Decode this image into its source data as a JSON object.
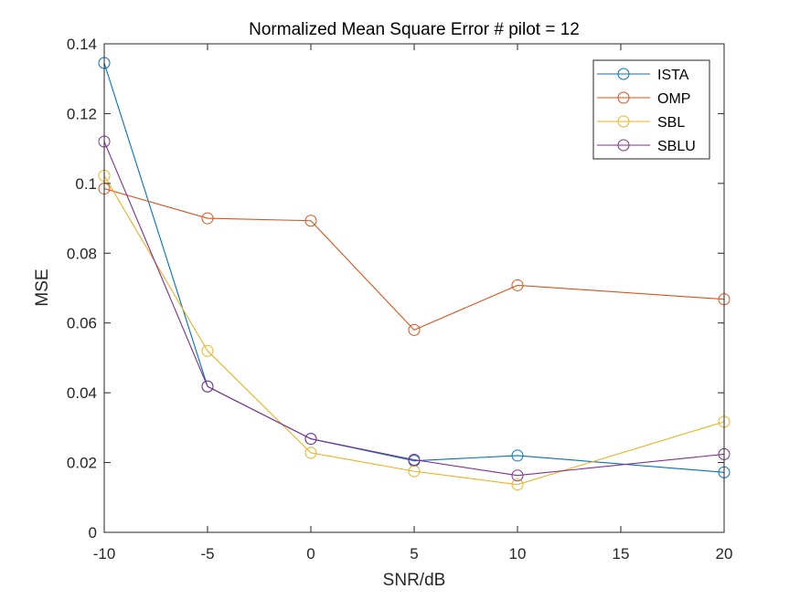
{
  "chart_data": {
    "type": "line",
    "title": "Normalized Mean Square Error # pilot = 12",
    "xlabel": "SNR/dB",
    "ylabel": "MSE",
    "x": [
      -10,
      -5,
      0,
      5,
      10,
      20
    ],
    "xlim": [
      -10,
      20
    ],
    "ylim": [
      0,
      0.14
    ],
    "xticks": [
      -10,
      -5,
      0,
      5,
      10,
      15,
      20
    ],
    "xtick_labels": [
      "-10",
      "-5",
      "0",
      "5",
      "10",
      "15",
      "20"
    ],
    "yticks": [
      0,
      0.02,
      0.04,
      0.06,
      0.08,
      0.1,
      0.12,
      0.14
    ],
    "ytick_labels": [
      "0",
      "0.02",
      "0.04",
      "0.06",
      "0.08",
      "0.1",
      "0.12",
      "0.14"
    ],
    "grid": false,
    "legend_position": "top-right",
    "marker": "circle",
    "series": [
      {
        "name": "ISTA",
        "color": "#0072BD",
        "values": [
          0.1345,
          0.0418,
          0.0268,
          0.0205,
          0.022,
          0.0172
        ]
      },
      {
        "name": "OMP",
        "color": "#D95319",
        "values": [
          0.0985,
          0.09,
          0.0893,
          0.058,
          0.0708,
          0.0668
        ]
      },
      {
        "name": "SBL",
        "color": "#EDB120",
        "values": [
          0.1022,
          0.052,
          0.0228,
          0.0175,
          0.0137,
          0.0317
        ]
      },
      {
        "name": "SBLU",
        "color": "#7E2F8E",
        "values": [
          0.112,
          0.0418,
          0.0268,
          0.0208,
          0.0163,
          0.0224
        ]
      }
    ]
  }
}
